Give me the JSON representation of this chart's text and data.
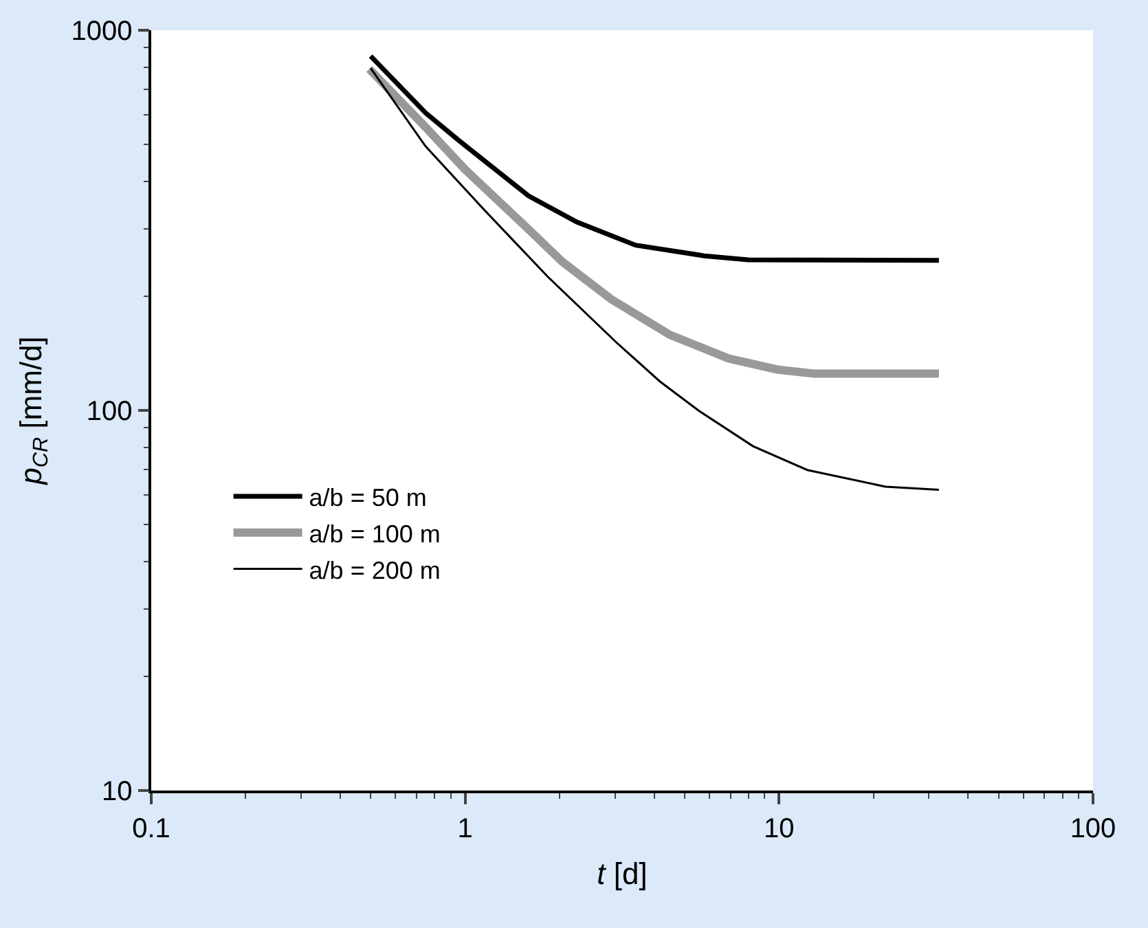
{
  "chart_data": {
    "type": "line",
    "xlabel": "t [d]",
    "ylabel": "p$_{CR}$ [mm/d]",
    "log": "xy",
    "xlim": [
      0.1,
      100
    ],
    "xticks": [
      0.1,
      1,
      10,
      100
    ],
    "ylim": [
      10,
      1000
    ],
    "yticks": [
      10,
      100,
      1000
    ],
    "legend": "bottom left",
    "marker": "none",
    "series": [
      {
        "name": "a/b = 50 m",
        "color": "#000000",
        "x": [
          0.5,
          0.748,
          0.96,
          1.59,
          2.27,
          3.49,
          5.78,
          7.98,
          32.3
        ],
        "values": [
          855,
          606,
          511,
          367,
          313,
          272,
          255,
          249,
          248
        ]
      },
      {
        "name": "a/b = 100 m",
        "color": "#999999",
        "x": [
          0.495,
          0.748,
          1.0,
          1.53,
          2.04,
          2.92,
          4.49,
          6.9,
          9.9,
          12.9,
          32.3
        ],
        "values": [
          791,
          556,
          430,
          309,
          246,
          196,
          158,
          137,
          128,
          125,
          125
        ]
      },
      {
        "name": "a/b = 200 m",
        "color": "#000000",
        "x": [
          0.5,
          0.748,
          1.15,
          1.83,
          3.03,
          4.18,
          5.55,
          8.26,
          12.3,
          21.8,
          32.3
        ],
        "values": [
          795,
          495,
          337,
          225,
          151,
          119,
          99.8,
          80.5,
          69.7,
          63,
          61.8
        ]
      }
    ]
  }
}
